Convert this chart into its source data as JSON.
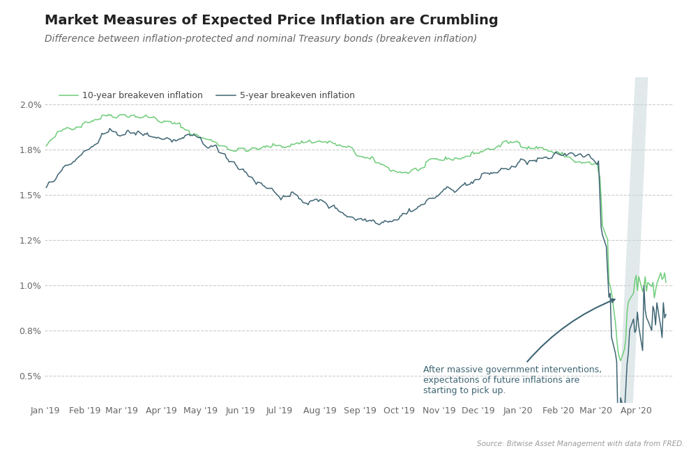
{
  "title": "Market Measures of Expected Price Inflation are Crumbling",
  "subtitle": "Difference between inflation-protected and nominal Treasury bonds (breakeven inflation)",
  "legend_10yr": "10-year breakeven inflation",
  "legend_5yr": "5-year breakeven inflation",
  "source_text": "Source: Bitwise Asset Management with data from FRED.",
  "color_10yr": "#6ECC7A",
  "color_5yr": "#3D6472",
  "background_color": "#FFFFFF",
  "grid_color": "#CCCCCC",
  "annotation_text": "After massive government interventions,\nexpectations of future inflations are\nstarting to pick up.",
  "annotation_color": "#3D6472",
  "ellipse_color": "#C5D5D8",
  "ylim_min": 0.35,
  "ylim_max": 2.15,
  "yticks": [
    0.5,
    0.75,
    1.0,
    1.25,
    1.5,
    1.75,
    2.0
  ],
  "title_fontsize": 14,
  "subtitle_fontsize": 10,
  "axis_fontsize": 9,
  "legend_fontsize": 9
}
